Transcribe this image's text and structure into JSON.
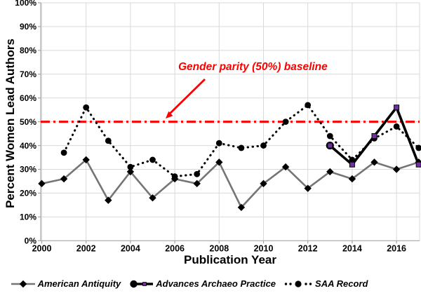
{
  "chart_data": {
    "type": "line",
    "title": "",
    "xlabel": "Publication Year",
    "ylabel": "Percent Women Lead Authors",
    "xlim": [
      2000,
      2017
    ],
    "ylim": [
      0,
      100
    ],
    "x_ticks": [
      2000,
      2002,
      2004,
      2006,
      2008,
      2010,
      2012,
      2014,
      2016
    ],
    "y_tick_labels": [
      "0%",
      "10%",
      "20%",
      "30%",
      "40%",
      "50%",
      "60%",
      "70%",
      "80%",
      "90%",
      "100%"
    ],
    "grid": true,
    "legend_position": "bottom",
    "baseline": {
      "value": 50,
      "label": "Gender parity (50%) baseline",
      "color": "#fe0000"
    },
    "colors": {
      "grid": "#d9d9d9",
      "axis": "#a6a6a6",
      "gray_series": "#757575",
      "black": "#000000",
      "purple": "#7030a0"
    },
    "series": [
      {
        "name": "American Antiquity",
        "line": "solid",
        "marker": "diamond",
        "color_key": "gray_series",
        "points": [
          [
            2000,
            24
          ],
          [
            2001,
            26
          ],
          [
            2002,
            34
          ],
          [
            2003,
            17
          ],
          [
            2004,
            29
          ],
          [
            2005,
            18
          ],
          [
            2006,
            26
          ],
          [
            2007,
            24
          ],
          [
            2008,
            33
          ],
          [
            2009,
            14
          ],
          [
            2010,
            24
          ],
          [
            2011,
            31
          ],
          [
            2012,
            22
          ],
          [
            2013,
            29
          ],
          [
            2014,
            26
          ],
          [
            2015,
            33
          ],
          [
            2016,
            30
          ],
          [
            2017,
            33
          ]
        ]
      },
      {
        "name": "Advances Archaeo Practice",
        "line": "solid",
        "marker": "square",
        "color_key": "black",
        "start_circle": true,
        "points": [
          [
            2013,
            40
          ],
          [
            2014,
            32
          ],
          [
            2015,
            44
          ],
          [
            2016,
            56
          ],
          [
            2017,
            32
          ]
        ]
      },
      {
        "name": "SAA Record",
        "line": "dotted",
        "marker": "circle",
        "color_key": "black",
        "points": [
          [
            2001,
            37
          ],
          [
            2002,
            56
          ],
          [
            2003,
            42
          ],
          [
            2004,
            31
          ],
          [
            2005,
            34
          ],
          [
            2006,
            27
          ],
          [
            2007,
            28
          ],
          [
            2008,
            41
          ],
          [
            2009,
            39
          ],
          [
            2010,
            40
          ],
          [
            2011,
            50
          ],
          [
            2012,
            57
          ],
          [
            2013,
            44
          ],
          [
            2014,
            34
          ],
          [
            2015,
            43
          ],
          [
            2016,
            48
          ],
          [
            2017,
            39
          ]
        ]
      }
    ]
  }
}
